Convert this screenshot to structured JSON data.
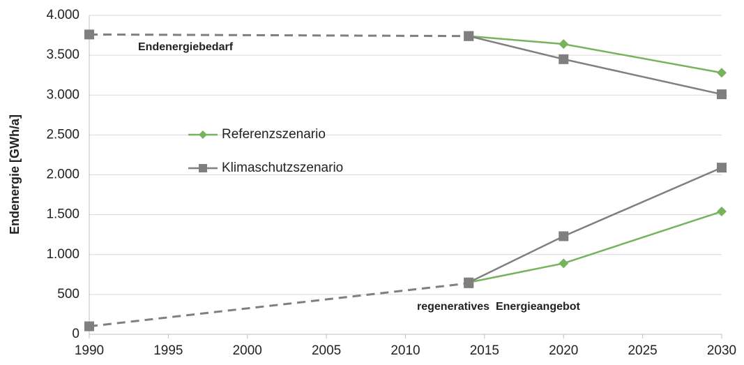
{
  "chart_data": {
    "type": "line",
    "y_label": "Endenergie [GWh/a]",
    "xlim": [
      1990,
      2030
    ],
    "xticks": [
      1990,
      1995,
      2000,
      2005,
      2010,
      2015,
      2020,
      2025,
      2030
    ],
    "ylim": [
      0,
      4000
    ],
    "yticks": [
      0,
      500,
      {
        "value": 1000,
        "label": "1.000"
      },
      {
        "value": 1500,
        "label": "1.500"
      },
      {
        "value": 2000,
        "label": "2.000"
      },
      {
        "value": 2500,
        "label": "2.500"
      },
      {
        "value": 3000,
        "label": "3.000"
      },
      {
        "value": 3500,
        "label": "3.500"
      },
      {
        "value": 4000,
        "label": "4.000"
      }
    ],
    "grid": true,
    "annotations": [
      "Endenergiebedarf",
      "regeneratives  Energieangebot"
    ],
    "history": {
      "color": "#7f7f7f",
      "dashed": true,
      "marker": "square",
      "x": [
        1990,
        2014
      ],
      "demand": [
        3760,
        3740
      ],
      "supply": [
        100,
        640
      ]
    },
    "series": [
      {
        "name": "Referenzszenario",
        "color": "#77b35a",
        "marker": "diamond",
        "x": [
          2014,
          2020,
          2030
        ],
        "demand": [
          3740,
          3640,
          3280
        ],
        "supply": [
          650,
          890,
          1540
        ]
      },
      {
        "name": "Klimaschutzszenario",
        "color": "#7f7f7f",
        "marker": "square",
        "x": [
          2014,
          2020,
          2030
        ],
        "demand": [
          3740,
          3450,
          3010
        ],
        "supply": [
          650,
          1230,
          2090
        ]
      }
    ]
  }
}
